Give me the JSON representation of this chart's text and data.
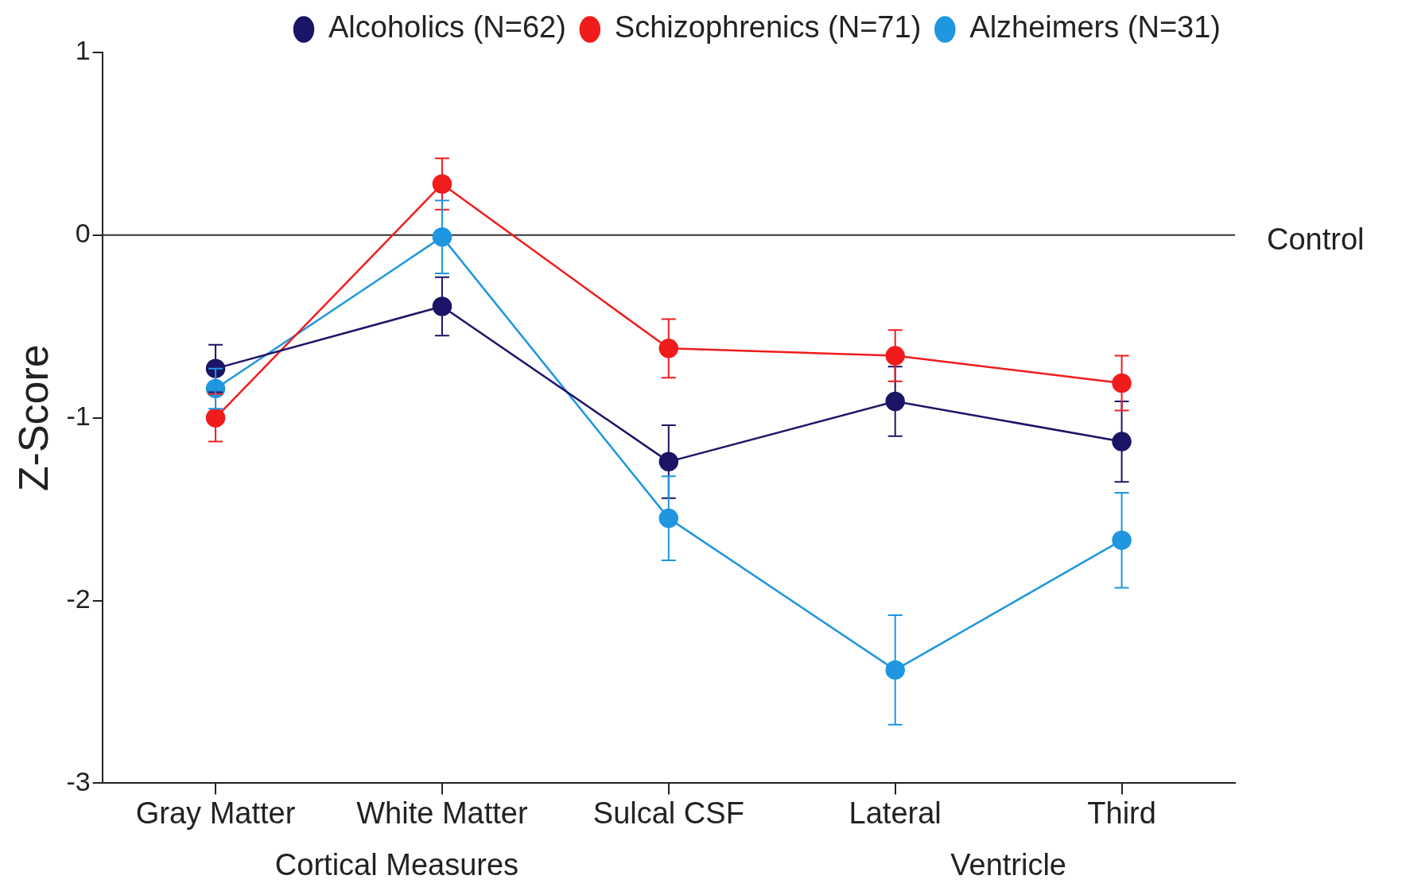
{
  "chart_data": {
    "type": "line",
    "ylabel": "Z-Score",
    "categories": [
      "Gray Matter",
      "White Matter",
      "Sulcal CSF",
      "Lateral",
      "Third"
    ],
    "series": [
      {
        "name": "Alcoholics (N=62)",
        "color": "#1c1466",
        "values": [
          -0.73,
          -0.39,
          -1.24,
          -0.91,
          -1.13
        ],
        "errors": [
          0.13,
          0.16,
          0.2,
          0.19,
          0.22
        ]
      },
      {
        "name": "Schizophrenics (N=71)",
        "color": "#f01c1c",
        "values": [
          -1.0,
          0.28,
          -0.62,
          -0.66,
          -0.81
        ],
        "errors": [
          0.13,
          0.14,
          0.16,
          0.14,
          0.15
        ]
      },
      {
        "name": "Alzheimers (N=31)",
        "color": "#1f96e0",
        "values": [
          -0.84,
          -0.01,
          -1.55,
          -2.38,
          -1.67
        ],
        "errors": [
          0.11,
          0.2,
          0.23,
          0.3,
          0.26
        ]
      }
    ],
    "ylim": [
      -3,
      1
    ],
    "yticks": [
      -3,
      -2,
      -1,
      0,
      1
    ],
    "ref_lines": [
      {
        "axis": "y",
        "value": 0,
        "label": "Control"
      }
    ],
    "annotations": [
      "Cortical Measures",
      "Ventricle"
    ],
    "legend": "top right",
    "marker": "circle",
    "line_style": "solid",
    "grid": false
  }
}
